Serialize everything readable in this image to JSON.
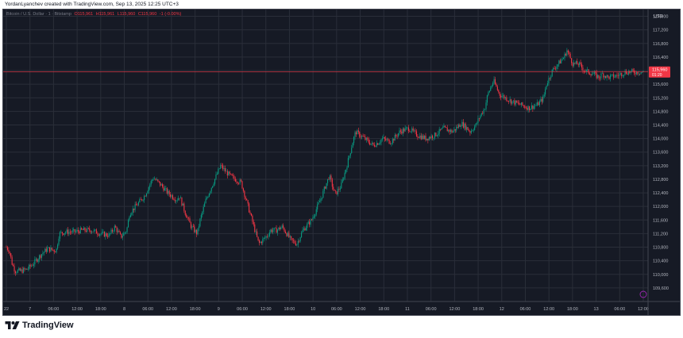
{
  "header": {
    "credit": "YordanLyanchev created with TradingView.com, Sep 13, 2025 12:25 UTC+3"
  },
  "legend": {
    "symbol": "Bitcoin / U.S. Dollar · 1 · Bitstamp",
    "open": "O115,961",
    "high": "H115,961",
    "low": "L115,960",
    "close": "C115,960",
    "change": "-1 (-0.00%)"
  },
  "axis": {
    "currency": "USD",
    "price_tag": "115,960",
    "price_tag_time": "01:20"
  },
  "footer": {
    "brand": "TradingView"
  },
  "colors": {
    "background": "#161a25",
    "grid": "#2a2e39",
    "up": "#089981",
    "down": "#f23645",
    "price_line": "#f23645"
  },
  "chart_data": {
    "type": "candlestick",
    "interval": "1m",
    "ylim": [
      109200,
      117800
    ],
    "y_ticks": [
      109600,
      110000,
      110400,
      110800,
      111200,
      111600,
      112000,
      112400,
      112800,
      113200,
      113600,
      114000,
      114400,
      114800,
      115200,
      115600,
      116000,
      116400,
      116800,
      117200,
      117600
    ],
    "x_ticks": [
      "22",
      "7",
      "06:00",
      "12:00",
      "18:00",
      "8",
      "06:00",
      "12:00",
      "18:00",
      "9",
      "06:00",
      "12:00",
      "18:00",
      "10",
      "06:00",
      "12:00",
      "18:00",
      "11",
      "06:00",
      "12:00",
      "18:00",
      "12",
      "06:00",
      "12:00",
      "18:00",
      "13",
      "06:00",
      "12:00"
    ],
    "last_price": 115960,
    "path_hours": [
      0,
      1,
      2,
      3,
      5,
      7,
      9,
      12,
      14,
      17,
      18,
      20,
      23,
      26,
      29,
      32,
      35,
      37,
      39,
      41,
      42,
      44,
      47,
      50,
      53,
      55,
      58,
      59,
      61,
      63,
      65,
      66,
      68,
      71,
      73,
      75,
      77,
      80,
      83,
      86,
      89,
      90,
      92,
      94,
      97,
      99,
      101,
      104,
      107,
      110,
      112,
      114,
      116,
      118,
      119,
      122,
      125,
      127,
      128,
      131,
      134,
      137,
      140,
      143,
      146,
      149,
      152,
      155,
      157,
      158,
      160,
      161,
      163,
      164,
      166,
      167,
      168,
      170,
      172,
      175,
      178,
      181,
      183,
      184,
      186,
      189,
      190,
      191,
      192,
      193,
      195,
      197,
      200,
      202,
      203,
      205,
      208,
      211,
      212,
      214,
      215,
      217
    ],
    "path_prices": [
      110800,
      110700,
      110300,
      110100,
      110100,
      110150,
      110300,
      110600,
      110750,
      110700,
      111200,
      111250,
      111250,
      111300,
      111300,
      111200,
      111150,
      111400,
      111100,
      111300,
      111800,
      112000,
      112300,
      112850,
      112600,
      112400,
      112200,
      112300,
      111800,
      111400,
      111200,
      111600,
      112200,
      112800,
      113200,
      113000,
      112850,
      112700,
      111800,
      110900,
      111150,
      111300,
      111300,
      111400,
      111000,
      110900,
      111300,
      111600,
      112200,
      112900,
      112350,
      112600,
      113200,
      113900,
      114200,
      114000,
      113800,
      113900,
      114000,
      113900,
      114200,
      114300,
      114100,
      114000,
      114100,
      114300,
      114200,
      114450,
      114300,
      114200,
      114400,
      114600,
      114900,
      115300,
      115700,
      115500,
      115300,
      115200,
      115100,
      115000,
      114900,
      115000,
      115200,
      115600,
      116000,
      116300,
      116400,
      116600,
      116400,
      116200,
      116200,
      116000,
      115900,
      115800,
      115900,
      115800,
      115850,
      115960,
      115960,
      115960,
      115960,
      115960
    ]
  }
}
